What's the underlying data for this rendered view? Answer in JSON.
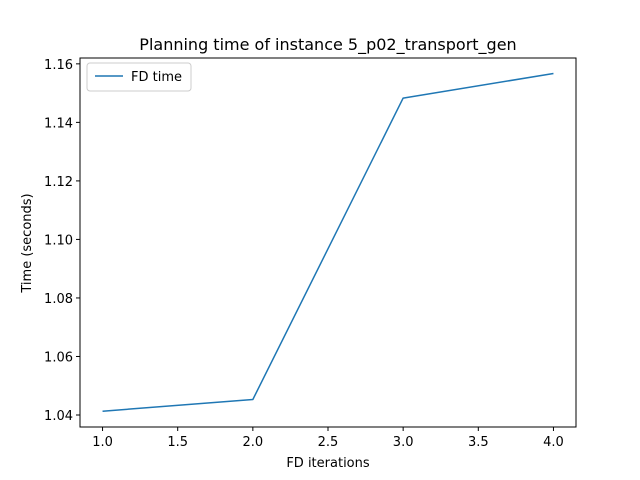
{
  "chart_data": {
    "type": "line",
    "title": "Planning time of instance 5_p02_transport_gen",
    "xlabel": "FD iterations",
    "ylabel": "Time (seconds)",
    "x": [
      1.0,
      2.0,
      3.0,
      4.0
    ],
    "series": [
      {
        "name": "FD time",
        "values": [
          1.0413,
          1.0453,
          1.1483,
          1.1567
        ],
        "color": "#1f77b4"
      }
    ],
    "xlim": [
      0.85,
      4.15
    ],
    "ylim": [
      1.0359,
      1.162
    ],
    "xticks": [
      "1.0",
      "1.5",
      "2.0",
      "2.5",
      "3.0",
      "3.5",
      "4.0"
    ],
    "yticks": [
      "1.04",
      "1.06",
      "1.08",
      "1.10",
      "1.12",
      "1.14",
      "1.16"
    ],
    "grid": false,
    "legend_position": "upper-left"
  }
}
